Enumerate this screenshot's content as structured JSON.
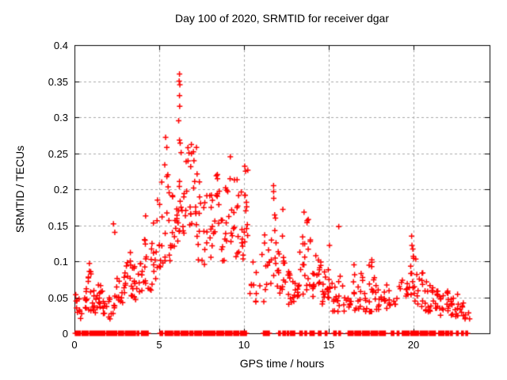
{
  "chart_data": {
    "type": "scatter",
    "title": "Day 100 of 2020, SRMTID for receiver dgar",
    "xlabel": "GPS time / hours",
    "ylabel": "SRMTID / TECUs",
    "series_name": "SRMTID",
    "xlim": [
      0,
      24.5
    ],
    "ylim": [
      0,
      0.4
    ],
    "xticks": [
      0,
      5,
      10,
      15,
      20
    ],
    "xtick_labels": [
      "0",
      "5",
      "10",
      "15",
      "20"
    ],
    "yticks": [
      0,
      0.05,
      0.1,
      0.15,
      0.2,
      0.25,
      0.3,
      0.35,
      0.4
    ],
    "ytick_labels": [
      "0",
      "0.05",
      "0.1",
      "0.15",
      "0.2",
      "0.25",
      "0.3",
      "0.35",
      "0.4"
    ],
    "grid": {
      "show": true,
      "style": "dashed",
      "color": "#a8a8a8"
    },
    "axis_color": "#000000",
    "marker": {
      "shape": "plus",
      "color": "#ff0000",
      "size": 7
    },
    "outlier_points": [
      [
        6.2,
        0.36
      ],
      [
        6.18,
        0.35
      ],
      [
        6.22,
        0.345
      ],
      [
        6.2,
        0.33
      ],
      [
        6.21,
        0.315
      ],
      [
        6.15,
        0.295
      ],
      [
        5.38,
        0.272
      ],
      [
        5.45,
        0.258
      ],
      [
        6.2,
        0.268
      ],
      [
        6.24,
        0.264
      ],
      [
        6.9,
        0.262
      ],
      [
        7.2,
        0.258
      ],
      [
        7.02,
        0.252
      ],
      [
        9.2,
        0.245
      ],
      [
        10.05,
        0.232
      ],
      [
        10.1,
        0.225
      ],
      [
        2.3,
        0.152
      ],
      [
        2.38,
        0.14
      ],
      [
        4.2,
        0.163
      ],
      [
        4.9,
        0.185
      ],
      [
        5.15,
        0.21
      ],
      [
        11.75,
        0.205
      ],
      [
        12.3,
        0.172
      ],
      [
        13.55,
        0.168
      ],
      [
        13.8,
        0.158
      ],
      [
        15.6,
        0.148
      ],
      [
        15.05,
        0.122
      ],
      [
        17.55,
        0.102
      ],
      [
        16.5,
        0.095
      ],
      [
        19.9,
        0.135
      ],
      [
        19.92,
        0.122
      ],
      [
        19.97,
        0.117
      ],
      [
        20.0,
        0.107
      ],
      [
        20.02,
        0.104
      ],
      [
        0.88,
        0.097
      ],
      [
        3.3,
        0.112
      ]
    ],
    "cloud_clusters": [
      [
        0.05,
        0.45,
        0.02,
        0.06,
        10
      ],
      [
        0.5,
        0.75,
        0.03,
        0.065,
        8
      ],
      [
        0.78,
        0.98,
        0.03,
        0.098,
        9
      ],
      [
        1.0,
        1.3,
        0.025,
        0.06,
        9
      ],
      [
        1.3,
        1.6,
        0.035,
        0.075,
        10
      ],
      [
        1.6,
        1.95,
        0.025,
        0.06,
        8
      ],
      [
        2.0,
        2.3,
        0.02,
        0.05,
        7
      ],
      [
        2.3,
        2.55,
        0.035,
        0.08,
        7
      ],
      [
        2.6,
        2.85,
        0.04,
        0.09,
        8
      ],
      [
        2.9,
        3.15,
        0.05,
        0.105,
        9
      ],
      [
        3.15,
        3.45,
        0.05,
        0.11,
        9
      ],
      [
        3.45,
        3.7,
        0.045,
        0.1,
        8
      ],
      [
        3.75,
        4.0,
        0.055,
        0.12,
        8
      ],
      [
        4.05,
        4.3,
        0.06,
        0.135,
        9
      ],
      [
        4.35,
        4.6,
        0.06,
        0.125,
        7
      ],
      [
        4.65,
        4.95,
        0.07,
        0.16,
        9
      ],
      [
        5.0,
        5.25,
        0.09,
        0.21,
        9
      ],
      [
        5.3,
        5.55,
        0.1,
        0.24,
        8
      ],
      [
        5.55,
        5.8,
        0.1,
        0.2,
        10
      ],
      [
        5.85,
        6.1,
        0.12,
        0.21,
        9
      ],
      [
        6.1,
        6.35,
        0.13,
        0.27,
        10
      ],
      [
        6.4,
        6.65,
        0.12,
        0.24,
        9
      ],
      [
        6.65,
        6.95,
        0.15,
        0.26,
        10
      ],
      [
        7.0,
        7.25,
        0.12,
        0.25,
        9
      ],
      [
        7.3,
        7.55,
        0.1,
        0.23,
        8
      ],
      [
        7.6,
        7.85,
        0.09,
        0.21,
        8
      ],
      [
        7.9,
        8.15,
        0.09,
        0.2,
        9
      ],
      [
        8.2,
        8.45,
        0.1,
        0.225,
        9
      ],
      [
        8.5,
        8.75,
        0.09,
        0.2,
        8
      ],
      [
        8.8,
        9.05,
        0.1,
        0.21,
        8
      ],
      [
        9.1,
        9.45,
        0.12,
        0.24,
        10
      ],
      [
        9.5,
        9.75,
        0.1,
        0.22,
        8
      ],
      [
        9.8,
        10.0,
        0.1,
        0.2,
        7
      ],
      [
        10.0,
        10.25,
        0.1,
        0.235,
        11
      ],
      [
        10.3,
        10.65,
        0.05,
        0.12,
        5
      ],
      [
        10.7,
        11.0,
        0.04,
        0.1,
        5
      ],
      [
        11.05,
        11.35,
        0.04,
        0.14,
        7
      ],
      [
        11.4,
        11.65,
        0.05,
        0.15,
        7
      ],
      [
        11.7,
        11.9,
        0.08,
        0.2,
        9
      ],
      [
        11.95,
        12.2,
        0.05,
        0.13,
        8
      ],
      [
        12.25,
        12.5,
        0.06,
        0.17,
        9
      ],
      [
        12.5,
        12.75,
        0.04,
        0.1,
        8
      ],
      [
        12.8,
        13.05,
        0.04,
        0.1,
        7
      ],
      [
        13.1,
        13.35,
        0.05,
        0.13,
        8
      ],
      [
        13.4,
        13.65,
        0.05,
        0.145,
        8
      ],
      [
        13.7,
        13.95,
        0.06,
        0.16,
        9
      ],
      [
        14.0,
        14.25,
        0.05,
        0.115,
        9
      ],
      [
        14.3,
        14.55,
        0.05,
        0.105,
        9
      ],
      [
        14.6,
        14.85,
        0.04,
        0.1,
        9
      ],
      [
        14.9,
        15.15,
        0.03,
        0.11,
        9
      ],
      [
        15.2,
        15.45,
        0.03,
        0.085,
        8
      ],
      [
        15.5,
        15.75,
        0.03,
        0.08,
        7
      ],
      [
        15.8,
        16.05,
        0.03,
        0.07,
        5
      ],
      [
        16.1,
        16.35,
        0.03,
        0.08,
        6
      ],
      [
        16.4,
        16.65,
        0.03,
        0.09,
        6
      ],
      [
        16.7,
        16.95,
        0.03,
        0.09,
        7
      ],
      [
        17.0,
        17.25,
        0.03,
        0.08,
        8
      ],
      [
        17.3,
        17.6,
        0.03,
        0.1,
        9
      ],
      [
        17.6,
        17.85,
        0.03,
        0.08,
        8
      ],
      [
        17.9,
        18.15,
        0.03,
        0.075,
        7
      ],
      [
        18.2,
        18.45,
        0.03,
        0.07,
        6
      ],
      [
        18.5,
        18.75,
        0.035,
        0.065,
        5
      ],
      [
        18.8,
        19.05,
        0.04,
        0.065,
        4
      ],
      [
        19.1,
        19.4,
        0.04,
        0.08,
        4
      ],
      [
        19.45,
        19.7,
        0.05,
        0.09,
        6
      ],
      [
        19.75,
        20.0,
        0.05,
        0.11,
        8
      ],
      [
        20.05,
        20.3,
        0.04,
        0.105,
        8
      ],
      [
        20.35,
        20.6,
        0.035,
        0.09,
        7
      ],
      [
        20.65,
        20.9,
        0.03,
        0.08,
        8
      ],
      [
        20.95,
        21.2,
        0.03,
        0.07,
        8
      ],
      [
        21.25,
        21.5,
        0.03,
        0.065,
        8
      ],
      [
        21.55,
        21.8,
        0.025,
        0.06,
        8
      ],
      [
        21.85,
        22.1,
        0.025,
        0.06,
        8
      ],
      [
        22.15,
        22.4,
        0.025,
        0.055,
        7
      ],
      [
        22.45,
        22.7,
        0.02,
        0.055,
        7
      ],
      [
        22.75,
        23.0,
        0.02,
        0.05,
        6
      ],
      [
        23.05,
        23.35,
        0.02,
        0.045,
        5
      ]
    ],
    "zero_segments": [
      [
        0.05,
        0.35
      ],
      [
        0.45,
        0.8
      ],
      [
        0.9,
        1.15
      ],
      [
        1.2,
        1.5
      ],
      [
        1.55,
        1.8
      ],
      [
        1.9,
        2.15
      ],
      [
        2.2,
        2.5
      ],
      [
        2.6,
        2.9
      ],
      [
        3.0,
        3.3
      ],
      [
        3.35,
        3.6
      ],
      [
        3.7,
        3.8
      ],
      [
        3.95,
        4.1
      ],
      [
        4.15,
        4.35
      ],
      [
        5.05,
        5.2
      ],
      [
        5.35,
        5.65
      ],
      [
        5.7,
        5.8
      ],
      [
        5.9,
        6.2
      ],
      [
        6.3,
        6.7
      ],
      [
        6.8,
        7.0
      ],
      [
        7.1,
        7.5
      ],
      [
        7.6,
        8.0
      ],
      [
        8.05,
        8.3
      ],
      [
        8.4,
        8.8
      ],
      [
        8.9,
        9.3
      ],
      [
        9.4,
        9.7
      ],
      [
        9.8,
        10.15
      ],
      [
        11.15,
        11.5
      ],
      [
        12.05,
        12.15
      ],
      [
        12.3,
        12.45
      ],
      [
        12.55,
        12.65
      ],
      [
        12.75,
        12.85
      ],
      [
        12.9,
        13.0
      ],
      [
        13.3,
        13.45
      ],
      [
        13.6,
        13.7
      ],
      [
        13.9,
        14.15
      ],
      [
        14.4,
        14.55
      ],
      [
        14.8,
        14.9
      ],
      [
        15.3,
        15.45
      ],
      [
        15.6,
        15.7
      ],
      [
        16.15,
        16.45
      ],
      [
        16.55,
        16.9
      ],
      [
        17.0,
        17.4
      ],
      [
        17.5,
        17.9
      ],
      [
        18.0,
        18.35
      ],
      [
        18.7,
        18.85
      ],
      [
        19.05,
        19.15
      ],
      [
        19.35,
        19.75
      ],
      [
        19.85,
        20.3
      ],
      [
        20.4,
        20.85
      ],
      [
        20.95,
        21.3
      ],
      [
        21.5,
        21.8
      ],
      [
        21.9,
        22.1
      ],
      [
        22.2,
        22.3
      ],
      [
        22.55,
        22.65
      ],
      [
        22.85,
        22.95
      ],
      [
        23.1,
        23.2
      ]
    ]
  }
}
